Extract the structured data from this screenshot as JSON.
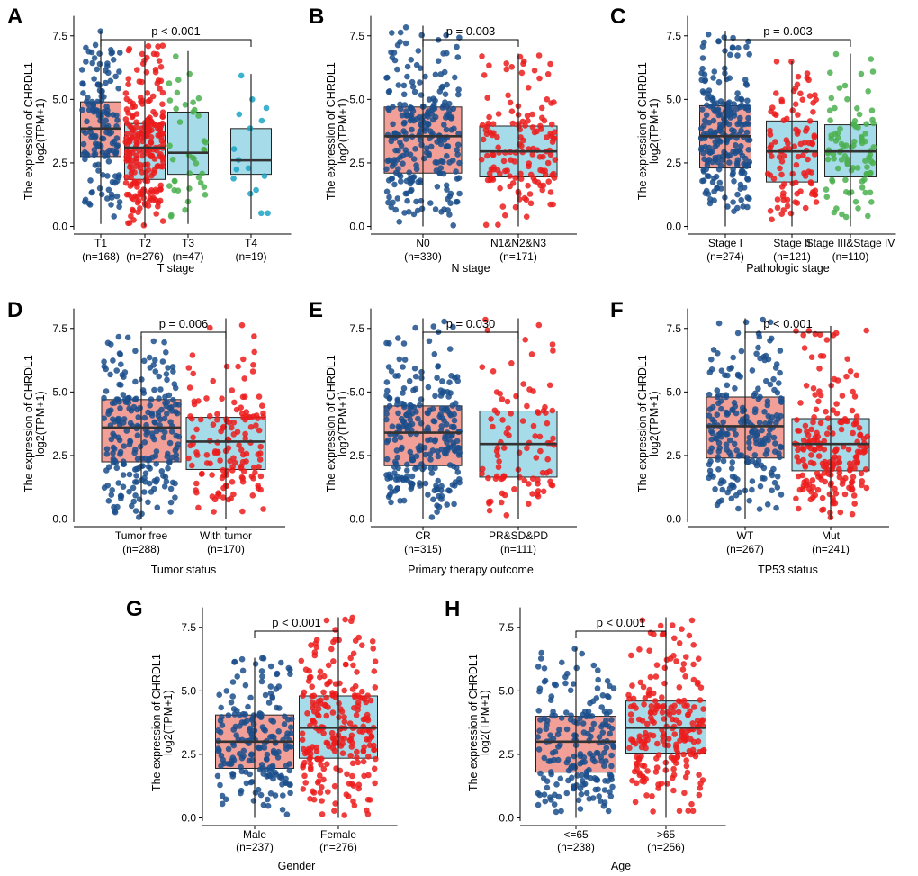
{
  "figure": {
    "ylabel_line1": "The expression of CHRDL1",
    "ylabel_line2": "log2(TPM+1)"
  },
  "colors": {
    "blue": "#1b4f8c",
    "red": "#ec1c1c",
    "green": "#4bb04f",
    "cyan": "#1ba3c4",
    "box_salmon": "#f2a097",
    "box_lightblue": "#a6dcea",
    "axis": "#000000"
  },
  "chart_data": [
    {
      "type": "box",
      "panel": "A",
      "title": "",
      "xlabel": "T stage",
      "ylim": [
        -0.3,
        8.2
      ],
      "yticks": [
        "0.0",
        "2.5",
        "5.0",
        "7.5"
      ],
      "ytick_values": [
        0,
        2.5,
        5,
        7.5
      ],
      "p_value": "p < 0.001",
      "bracket": [
        0,
        3
      ],
      "groups": [
        {
          "label": "T1",
          "n": "(n=168)",
          "median": 3.85,
          "q1": 2.75,
          "q3": 4.9,
          "whisker_low": 0.1,
          "whisker_high": 7.7,
          "box_fill": "#f2a097",
          "point_color": "#1b4f8c"
        },
        {
          "label": "T2",
          "n": "(n=276)",
          "median": 3.1,
          "q1": 1.85,
          "q3": 4.05,
          "whisker_low": 0.0,
          "whisker_high": 7.3,
          "box_fill": "#a6dcea",
          "point_color": "#ec1c1c"
        },
        {
          "label": "T3",
          "n": "(n=47)",
          "median": 2.9,
          "q1": 2.05,
          "q3": 4.5,
          "whisker_low": 0.1,
          "whisker_high": 6.9,
          "box_fill": "#a6dcea",
          "point_color": "#4bb04f"
        },
        {
          "label": "T4",
          "n": "(n=19)",
          "median": 2.6,
          "q1": 2.05,
          "q3": 3.85,
          "whisker_low": 0.3,
          "whisker_high": 6.0,
          "box_fill": "#a6dcea",
          "point_color": "#1ba3c4"
        }
      ]
    },
    {
      "type": "box",
      "panel": "B",
      "title": "",
      "xlabel": "N stage",
      "ylim": [
        -0.3,
        8.2
      ],
      "yticks": [
        "0.0",
        "2.5",
        "5.0",
        "7.5"
      ],
      "ytick_values": [
        0,
        2.5,
        5,
        7.5
      ],
      "p_value": "p = 0.003",
      "bracket": [
        0,
        1
      ],
      "groups": [
        {
          "label": "N0",
          "n": "(n=330)",
          "median": 3.55,
          "q1": 2.1,
          "q3": 4.7,
          "whisker_low": 0.0,
          "whisker_high": 7.9,
          "box_fill": "#f2a097",
          "point_color": "#1b4f8c"
        },
        {
          "label": "N1&N2&N3",
          "n": "(n=171)",
          "median": 2.95,
          "q1": 1.95,
          "q3": 3.95,
          "whisker_low": 0.0,
          "whisker_high": 6.8,
          "box_fill": "#a6dcea",
          "point_color": "#ec1c1c"
        }
      ]
    },
    {
      "type": "box",
      "panel": "C",
      "title": "",
      "xlabel": "Pathologic stage",
      "ylim": [
        -0.3,
        8.2
      ],
      "yticks": [
        "0.0",
        "2.5",
        "5.0",
        "7.5"
      ],
      "ytick_values": [
        0,
        2.5,
        5,
        7.5
      ],
      "p_value": "p = 0.003",
      "bracket": [
        0,
        2
      ],
      "groups": [
        {
          "label": "Stage I",
          "n": "(n=274)",
          "median": 3.55,
          "q1": 2.3,
          "q3": 4.75,
          "whisker_low": 0.0,
          "whisker_high": 7.7,
          "box_fill": "#f2a097",
          "point_color": "#1b4f8c"
        },
        {
          "label": "Stage II",
          "n": "(n=121)",
          "median": 2.95,
          "q1": 1.75,
          "q3": 4.15,
          "whisker_low": 0.0,
          "whisker_high": 6.5,
          "box_fill": "#a6dcea",
          "point_color": "#ec1c1c"
        },
        {
          "label": "Stage III&Stage IV",
          "n": "(n=110)",
          "median": 2.95,
          "q1": 1.95,
          "q3": 4.0,
          "whisker_low": 0.0,
          "whisker_high": 6.8,
          "box_fill": "#a6dcea",
          "point_color": "#4bb04f"
        }
      ]
    },
    {
      "type": "box",
      "panel": "D",
      "title": "",
      "xlabel": "Tumor status",
      "ylim": [
        -0.3,
        8.2
      ],
      "yticks": [
        "0.0",
        "2.5",
        "5.0",
        "7.5"
      ],
      "ytick_values": [
        0,
        2.5,
        5,
        7.5
      ],
      "p_value": "p = 0.006",
      "bracket": [
        0,
        1
      ],
      "groups": [
        {
          "label": "Tumor free",
          "n": "(n=288)",
          "median": 3.6,
          "q1": 2.25,
          "q3": 4.7,
          "whisker_low": 0.0,
          "whisker_high": 7.2,
          "box_fill": "#f2a097",
          "point_color": "#1b4f8c"
        },
        {
          "label": "With tumor",
          "n": "(n=170)",
          "median": 3.05,
          "q1": 1.95,
          "q3": 4.0,
          "whisker_low": 0.0,
          "whisker_high": 7.9,
          "box_fill": "#a6dcea",
          "point_color": "#ec1c1c"
        }
      ]
    },
    {
      "type": "box",
      "panel": "E",
      "title": "",
      "xlabel": "Primary therapy outcome",
      "ylim": [
        -0.3,
        8.2
      ],
      "yticks": [
        "0.0",
        "2.5",
        "5.0",
        "7.5"
      ],
      "ytick_values": [
        0,
        2.5,
        5,
        7.5
      ],
      "p_value": "p = 0.030",
      "bracket": [
        0,
        1
      ],
      "groups": [
        {
          "label": "CR",
          "n": "(n=315)",
          "median": 3.4,
          "q1": 2.1,
          "q3": 4.45,
          "whisker_low": 0.0,
          "whisker_high": 7.9,
          "box_fill": "#f2a097",
          "point_color": "#1b4f8c"
        },
        {
          "label": "PR&SD&PD",
          "n": "(n=111)",
          "median": 2.95,
          "q1": 1.65,
          "q3": 4.25,
          "whisker_low": 0.0,
          "whisker_high": 7.9,
          "box_fill": "#a6dcea",
          "point_color": "#ec1c1c"
        }
      ]
    },
    {
      "type": "box",
      "panel": "F",
      "title": "",
      "xlabel": "TP53 status",
      "ylim": [
        -0.3,
        8.2
      ],
      "yticks": [
        "0.0",
        "2.5",
        "5.0",
        "7.5"
      ],
      "ytick_values": [
        0,
        2.5,
        5,
        7.5
      ],
      "p_value": "p < 0.001",
      "bracket": [
        0,
        1
      ],
      "groups": [
        {
          "label": "WT",
          "n": "(n=267)",
          "median": 3.65,
          "q1": 2.4,
          "q3": 4.8,
          "whisker_low": 0.0,
          "whisker_high": 7.9,
          "box_fill": "#f2a097",
          "point_color": "#1b4f8c"
        },
        {
          "label": "Mut",
          "n": "(n=241)",
          "median": 2.95,
          "q1": 1.9,
          "q3": 3.95,
          "whisker_low": 0.0,
          "whisker_high": 7.6,
          "box_fill": "#a6dcea",
          "point_color": "#ec1c1c"
        }
      ]
    },
    {
      "type": "box",
      "panel": "G",
      "title": "",
      "xlabel": "Gender",
      "ylim": [
        -0.3,
        8.2
      ],
      "yticks": [
        "0.0",
        "2.5",
        "5.0",
        "7.5"
      ],
      "ytick_values": [
        0,
        2.5,
        5,
        7.5
      ],
      "p_value": "p < 0.001",
      "bracket": [
        0,
        1
      ],
      "groups": [
        {
          "label": "Male",
          "n": "(n=237)",
          "median": 3.0,
          "q1": 1.95,
          "q3": 4.05,
          "whisker_low": 0.0,
          "whisker_high": 6.3,
          "box_fill": "#f2a097",
          "point_color": "#1b4f8c"
        },
        {
          "label": "Female",
          "n": "(n=276)",
          "median": 3.55,
          "q1": 2.35,
          "q3": 4.8,
          "whisker_low": 0.0,
          "whisker_high": 7.9,
          "box_fill": "#a6dcea",
          "point_color": "#ec1c1c"
        }
      ]
    },
    {
      "type": "box",
      "panel": "H",
      "title": "",
      "xlabel": "Age",
      "ylim": [
        -0.3,
        8.2
      ],
      "yticks": [
        "0.0",
        "2.5",
        "5.0",
        "7.5"
      ],
      "ytick_values": [
        0,
        2.5,
        5,
        7.5
      ],
      "p_value": "p < 0.001",
      "bracket": [
        0,
        1
      ],
      "groups": [
        {
          "label": "<=65",
          "n": "(n=238)",
          "median": 3.0,
          "q1": 1.8,
          "q3": 4.0,
          "whisker_low": 0.0,
          "whisker_high": 6.7,
          "box_fill": "#f2a097",
          "point_color": "#1b4f8c"
        },
        {
          "label": ">65",
          "n": "(n=256)",
          "median": 3.55,
          "q1": 2.55,
          "q3": 4.6,
          "whisker_low": 0.0,
          "whisker_high": 7.9,
          "box_fill": "#a6dcea",
          "point_color": "#ec1c1c"
        }
      ]
    }
  ]
}
